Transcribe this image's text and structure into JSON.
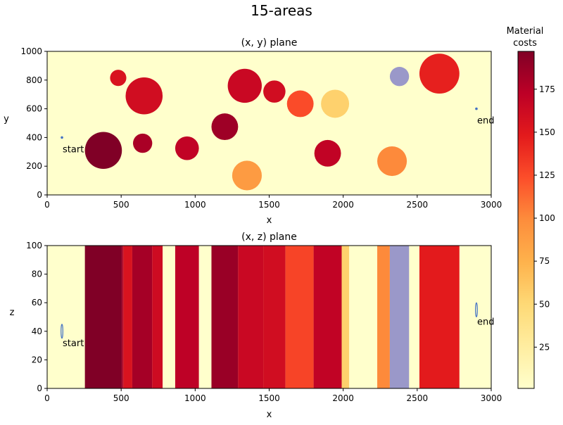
{
  "title": "15-areas",
  "colorbar": {
    "label_line1": "Material",
    "label_line2": "costs",
    "min": 1,
    "max": 197,
    "ticks": [
      25,
      50,
      75,
      100,
      125,
      150,
      175
    ],
    "colormap": "YlOrRd"
  },
  "chart_data": [
    {
      "type": "scatter",
      "title": "(x, y) plane",
      "xlabel": "x",
      "ylabel": "y",
      "xlim": [
        0,
        3000
      ],
      "ylim": [
        0,
        1000
      ],
      "xticks": [
        0,
        500,
        1000,
        1500,
        2000,
        2500,
        3000
      ],
      "yticks": [
        0,
        200,
        400,
        600,
        800,
        1000
      ],
      "background_cost": 1,
      "areas": [
        {
          "x": 380,
          "y": 310,
          "r": 125,
          "cost": 197
        },
        {
          "x": 480,
          "y": 815,
          "r": 55,
          "cost": 155
        },
        {
          "x": 655,
          "y": 690,
          "r": 125,
          "cost": 160
        },
        {
          "x": 645,
          "y": 360,
          "r": 65,
          "cost": 180
        },
        {
          "x": 945,
          "y": 325,
          "r": 80,
          "cost": 170
        },
        {
          "x": 1200,
          "y": 475,
          "r": 90,
          "cost": 185
        },
        {
          "x": 1335,
          "y": 760,
          "r": 115,
          "cost": 165
        },
        {
          "x": 1350,
          "y": 135,
          "r": 100,
          "cost": 90
        },
        {
          "x": 1535,
          "y": 720,
          "r": 75,
          "cost": 160
        },
        {
          "x": 1710,
          "y": 635,
          "r": 90,
          "cost": 125
        },
        {
          "x": 1895,
          "y": 290,
          "r": 90,
          "cost": 170
        },
        {
          "x": 1945,
          "y": 635,
          "r": 95,
          "cost": 55
        },
        {
          "x": 2330,
          "y": 235,
          "r": 100,
          "cost": 100
        },
        {
          "x": 2380,
          "y": 825,
          "r": 65,
          "cost": null,
          "color": "#9a98c9"
        },
        {
          "x": 2650,
          "y": 845,
          "r": 135,
          "cost": 145
        }
      ],
      "points": [
        {
          "label": "start",
          "x": 100,
          "y": 400
        },
        {
          "label": "end",
          "x": 2900,
          "y": 600
        }
      ]
    },
    {
      "type": "area",
      "title": "(x, z) plane",
      "xlabel": "x",
      "ylabel": "z",
      "xlim": [
        0,
        3000
      ],
      "ylim": [
        0,
        100
      ],
      "xticks": [
        0,
        500,
        1000,
        1500,
        2000,
        2500,
        3000
      ],
      "yticks": [
        0,
        20,
        40,
        60,
        80,
        100
      ],
      "bands": [
        {
          "x0": 255,
          "x1": 505,
          "cost": 197
        },
        {
          "x0": 505,
          "x1": 515,
          "cost": 180
        },
        {
          "x0": 515,
          "x1": 575,
          "cost": 155
        },
        {
          "x0": 575,
          "x1": 710,
          "cost": 182
        },
        {
          "x0": 710,
          "x1": 780,
          "cost": 162
        },
        {
          "x0": 865,
          "x1": 1025,
          "cost": 172
        },
        {
          "x0": 1110,
          "x1": 1290,
          "cost": 187
        },
        {
          "x0": 1290,
          "x1": 1460,
          "cost": 165
        },
        {
          "x0": 1460,
          "x1": 1610,
          "cost": 160
        },
        {
          "x0": 1610,
          "x1": 1800,
          "cost": 128
        },
        {
          "x0": 1800,
          "x1": 1990,
          "cost": 170
        },
        {
          "x0": 1990,
          "x1": 2040,
          "cost": 55
        },
        {
          "x0": 2230,
          "x1": 2315,
          "cost": 100
        },
        {
          "x0": 2315,
          "x1": 2445,
          "cost": null,
          "color": "#9a98c9"
        },
        {
          "x0": 2515,
          "x1": 2785,
          "cost": 148
        }
      ],
      "points": [
        {
          "label": "start",
          "x": 100,
          "y": 40
        },
        {
          "label": "end",
          "x": 2900,
          "y": 55
        }
      ]
    }
  ]
}
